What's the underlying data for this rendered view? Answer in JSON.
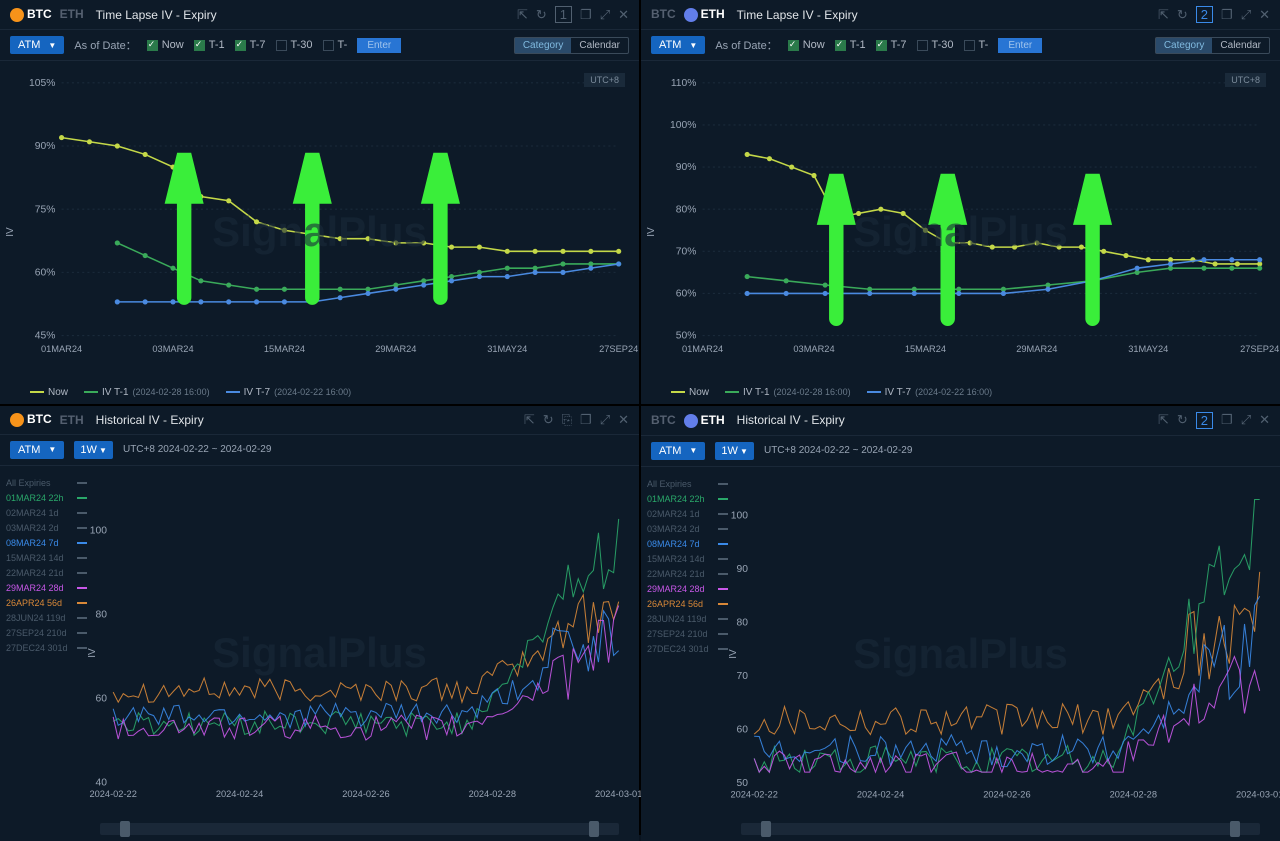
{
  "watermark": "SignalPlus",
  "utc": "UTC+8",
  "panels": {
    "btc_timelapse": {
      "coins": [
        "BTC",
        "ETH"
      ],
      "active": "BTC",
      "title": "Time Lapse IV - Expiry",
      "atm": "ATM",
      "asof_label": "As of Date：",
      "checks": [
        {
          "label": "Now",
          "checked": true
        },
        {
          "label": "T-1",
          "checked": true
        },
        {
          "label": "T-7",
          "checked": true
        },
        {
          "label": "T-30",
          "checked": false
        },
        {
          "label": "T-",
          "checked": false
        }
      ],
      "enter": "Enter",
      "btns": [
        "Category",
        "Calendar"
      ],
      "btn_active": "Category",
      "ylabel": "IV",
      "yticks": [
        "105%",
        "90%",
        "75%",
        "60%",
        "45%"
      ],
      "ylim": [
        45,
        105
      ],
      "xticks": [
        "01MAR24",
        "03MAR24",
        "15MAR24",
        "29MAR24",
        "31MAY24",
        "27SEP24"
      ],
      "series": {
        "now": {
          "color": "#c4d848",
          "label": "Now",
          "data": [
            [
              0,
              92
            ],
            [
              5,
              91
            ],
            [
              10,
              90
            ],
            [
              15,
              88
            ],
            [
              20,
              85
            ],
            [
              25,
              78
            ],
            [
              30,
              77
            ],
            [
              35,
              72
            ],
            [
              40,
              70
            ],
            [
              45,
              69
            ],
            [
              50,
              68
            ],
            [
              55,
              68
            ],
            [
              60,
              67
            ],
            [
              65,
              67
            ],
            [
              70,
              66
            ],
            [
              75,
              66
            ],
            [
              80,
              65
            ],
            [
              85,
              65
            ],
            [
              90,
              65
            ],
            [
              95,
              65
            ],
            [
              100,
              65
            ]
          ]
        },
        "t1": {
          "color": "#3aaa5a",
          "label": "IV T-1",
          "sub": "(2024-02-28 16:00)",
          "data": [
            [
              10,
              67
            ],
            [
              15,
              64
            ],
            [
              20,
              61
            ],
            [
              25,
              58
            ],
            [
              30,
              57
            ],
            [
              35,
              56
            ],
            [
              40,
              56
            ],
            [
              45,
              56
            ],
            [
              50,
              56
            ],
            [
              55,
              56
            ],
            [
              60,
              57
            ],
            [
              65,
              58
            ],
            [
              70,
              59
            ],
            [
              75,
              60
            ],
            [
              80,
              61
            ],
            [
              85,
              61
            ],
            [
              90,
              62
            ],
            [
              95,
              62
            ],
            [
              100,
              62
            ]
          ]
        },
        "t7": {
          "color": "#4a8ae0",
          "label": "IV T-7",
          "sub": "(2024-02-22 16:00)",
          "data": [
            [
              10,
              53
            ],
            [
              15,
              53
            ],
            [
              20,
              53
            ],
            [
              25,
              53
            ],
            [
              30,
              53
            ],
            [
              35,
              53
            ],
            [
              40,
              53
            ],
            [
              45,
              53
            ],
            [
              50,
              54
            ],
            [
              55,
              55
            ],
            [
              60,
              56
            ],
            [
              65,
              57
            ],
            [
              70,
              58
            ],
            [
              75,
              59
            ],
            [
              80,
              59
            ],
            [
              85,
              60
            ],
            [
              90,
              60
            ],
            [
              95,
              61
            ],
            [
              100,
              62
            ]
          ]
        }
      },
      "arrows": [
        {
          "x": 22
        },
        {
          "x": 45
        },
        {
          "x": 68
        }
      ]
    },
    "eth_timelapse": {
      "coins": [
        "BTC",
        "ETH"
      ],
      "active": "ETH",
      "title": "Time Lapse IV - Expiry",
      "atm": "ATM",
      "asof_label": "As of Date：",
      "checks": [
        {
          "label": "Now",
          "checked": true
        },
        {
          "label": "T-1",
          "checked": true
        },
        {
          "label": "T-7",
          "checked": true
        },
        {
          "label": "T-30",
          "checked": false
        },
        {
          "label": "T-",
          "checked": false
        }
      ],
      "enter": "Enter",
      "btns": [
        "Category",
        "Calendar"
      ],
      "btn_active": "Category",
      "ylabel": "IV",
      "yticks": [
        "110%",
        "100%",
        "90%",
        "80%",
        "70%",
        "60%",
        "50%"
      ],
      "ylim": [
        50,
        110
      ],
      "xticks": [
        "01MAR24",
        "03MAR24",
        "15MAR24",
        "29MAR24",
        "31MAY24",
        "27SEP24"
      ],
      "series": {
        "now": {
          "color": "#c4d848",
          "label": "Now",
          "data": [
            [
              8,
              93
            ],
            [
              12,
              92
            ],
            [
              16,
              90
            ],
            [
              20,
              88
            ],
            [
              24,
              78
            ],
            [
              28,
              79
            ],
            [
              32,
              80
            ],
            [
              36,
              79
            ],
            [
              40,
              75
            ],
            [
              44,
              72
            ],
            [
              48,
              72
            ],
            [
              52,
              71
            ],
            [
              56,
              71
            ],
            [
              60,
              72
            ],
            [
              64,
              71
            ],
            [
              68,
              71
            ],
            [
              72,
              70
            ],
            [
              76,
              69
            ],
            [
              80,
              68
            ],
            [
              84,
              68
            ],
            [
              88,
              68
            ],
            [
              92,
              67
            ],
            [
              96,
              67
            ],
            [
              100,
              67
            ]
          ]
        },
        "t1": {
          "color": "#3aaa5a",
          "label": "IV T-1",
          "sub": "(2024-02-28 16:00)",
          "data": [
            [
              8,
              64
            ],
            [
              15,
              63
            ],
            [
              22,
              62
            ],
            [
              30,
              61
            ],
            [
              38,
              61
            ],
            [
              46,
              61
            ],
            [
              54,
              61
            ],
            [
              62,
              62
            ],
            [
              70,
              63
            ],
            [
              78,
              65
            ],
            [
              84,
              66
            ],
            [
              90,
              66
            ],
            [
              95,
              66
            ],
            [
              100,
              66
            ]
          ]
        },
        "t7": {
          "color": "#4a8ae0",
          "label": "IV T-7",
          "sub": "(2024-02-22 16:00)",
          "data": [
            [
              8,
              60
            ],
            [
              15,
              60
            ],
            [
              22,
              60
            ],
            [
              30,
              60
            ],
            [
              38,
              60
            ],
            [
              46,
              60
            ],
            [
              54,
              60
            ],
            [
              62,
              61
            ],
            [
              70,
              63
            ],
            [
              78,
              66
            ],
            [
              84,
              67
            ],
            [
              90,
              68
            ],
            [
              95,
              68
            ],
            [
              100,
              68
            ]
          ]
        }
      },
      "arrows": [
        {
          "x": 24
        },
        {
          "x": 44
        },
        {
          "x": 70
        }
      ]
    },
    "btc_hist": {
      "coins": [
        "BTC",
        "ETH"
      ],
      "active": "BTC",
      "title": "Historical IV - Expiry",
      "atm": "ATM",
      "tw": "1W",
      "range": "UTC+8 2024-02-22 ~ 2024-02-29",
      "ylabel": "IV",
      "yticks": [
        "100",
        "80",
        "60",
        "40"
      ],
      "ylim": [
        40,
        110
      ],
      "xticks": [
        "2024-02-22",
        "2024-02-24",
        "2024-02-26",
        "2024-02-28",
        "2024-03-01"
      ],
      "expiries": [
        {
          "label": "All Expiries",
          "color": "#4a5a6a"
        },
        {
          "label": "01MAR24 22h",
          "color": "#2aa86a",
          "hl": true
        },
        {
          "label": "02MAR24 1d",
          "color": "#4a5a6a"
        },
        {
          "label": "03MAR24 2d",
          "color": "#4a5a6a"
        },
        {
          "label": "08MAR24 7d",
          "color": "#3a8ae8",
          "hl": true
        },
        {
          "label": "15MAR24 14d",
          "color": "#4a5a6a"
        },
        {
          "label": "22MAR24 21d",
          "color": "#4a5a6a"
        },
        {
          "label": "29MAR24 28d",
          "color": "#c858e8",
          "hl": true
        },
        {
          "label": "26APR24 56d",
          "color": "#d88838",
          "hl": true
        },
        {
          "label": "28JUN24 119d",
          "color": "#4a5a6a"
        },
        {
          "label": "27SEP24 210d",
          "color": "#4a5a6a"
        },
        {
          "label": "27DEC24 301d",
          "color": "#4a5a6a"
        }
      ]
    },
    "eth_hist": {
      "coins": [
        "BTC",
        "ETH"
      ],
      "active": "ETH",
      "title": "Historical IV - Expiry",
      "atm": "ATM",
      "tw": "1W",
      "range": "UTC+8 2024-02-22 ~ 2024-02-29",
      "ylabel": "IV",
      "yticks": [
        "100",
        "90",
        "80",
        "70",
        "60",
        "50"
      ],
      "ylim": [
        50,
        105
      ],
      "xticks": [
        "2024-02-22",
        "2024-02-24",
        "2024-02-26",
        "2024-02-28",
        "2024-03-01"
      ],
      "expiries": [
        {
          "label": "All Expiries",
          "color": "#4a5a6a"
        },
        {
          "label": "01MAR24 22h",
          "color": "#2aa86a",
          "hl": true
        },
        {
          "label": "02MAR24 1d",
          "color": "#4a5a6a"
        },
        {
          "label": "03MAR24 2d",
          "color": "#4a5a6a"
        },
        {
          "label": "08MAR24 7d",
          "color": "#3a8ae8",
          "hl": true
        },
        {
          "label": "15MAR24 14d",
          "color": "#4a5a6a"
        },
        {
          "label": "22MAR24 21d",
          "color": "#4a5a6a"
        },
        {
          "label": "29MAR24 28d",
          "color": "#c858e8",
          "hl": true
        },
        {
          "label": "26APR24 56d",
          "color": "#d88838",
          "hl": true
        },
        {
          "label": "28JUN24 119d",
          "color": "#4a5a6a"
        },
        {
          "label": "27SEP24 210d",
          "color": "#4a5a6a"
        },
        {
          "label": "27DEC24 301d",
          "color": "#4a5a6a"
        }
      ]
    }
  },
  "hist_series": {
    "green": {
      "color": "#2aa86a"
    },
    "blue": {
      "color": "#3a8ae8"
    },
    "pink": {
      "color": "#c858e8"
    },
    "orange": {
      "color": "#d88838"
    }
  },
  "colors": {
    "grid": "#1a2a3a",
    "bg": "#0d1a28",
    "text": "#98a4b4"
  }
}
